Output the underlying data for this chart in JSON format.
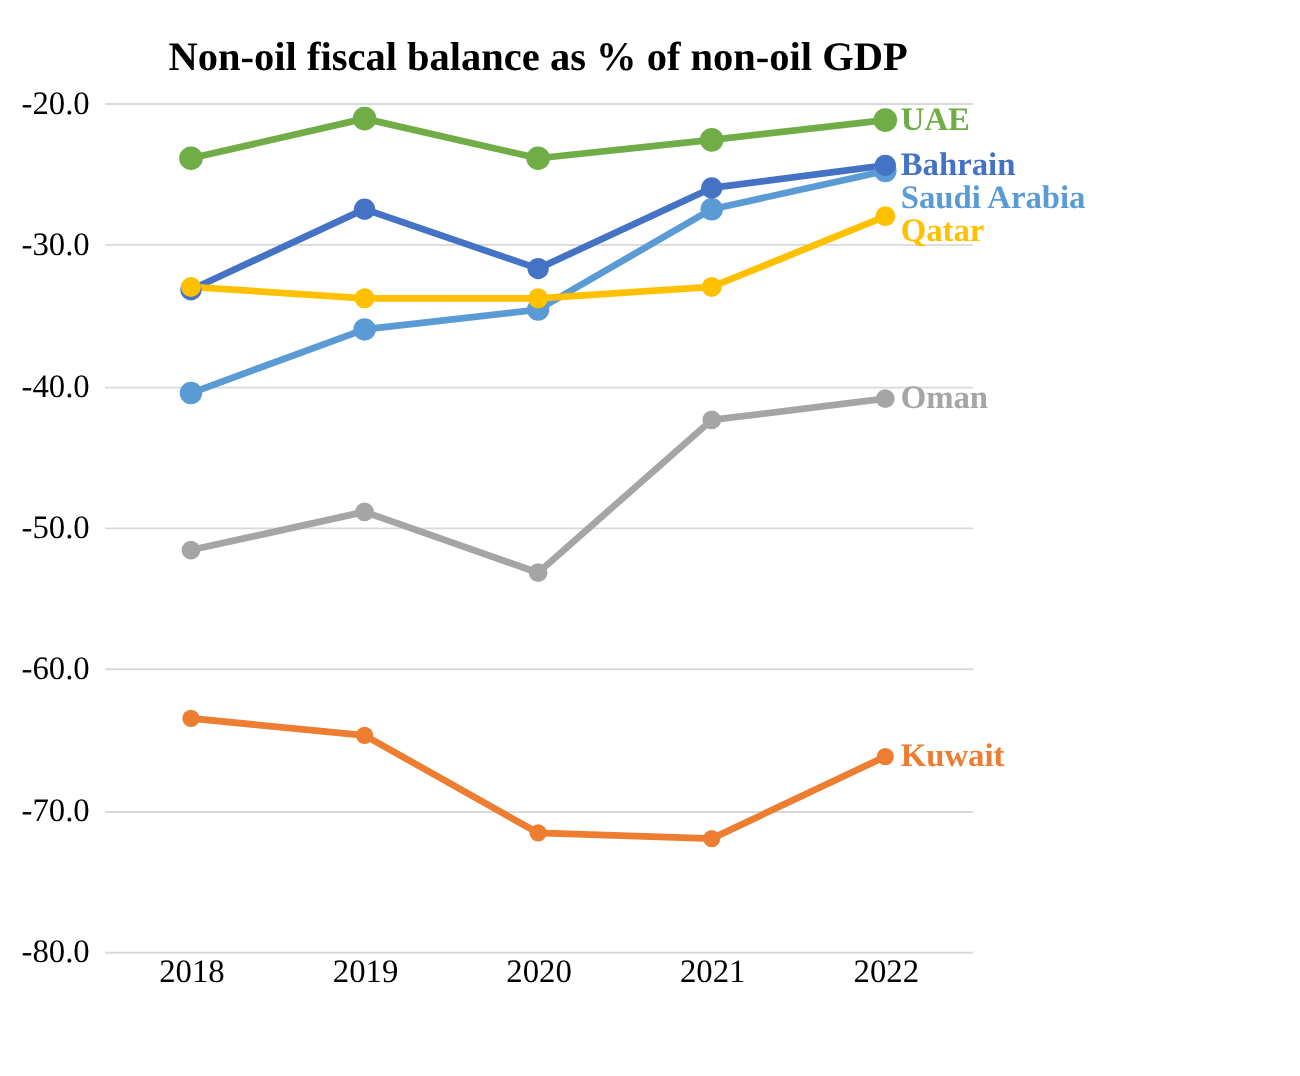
{
  "chart_data": {
    "type": "line",
    "title": "Non-oil fiscal balance as % of non-oil GDP",
    "categories": [
      "2018",
      "2019",
      "2020",
      "2021",
      "2022"
    ],
    "series": [
      {
        "name": "UAE",
        "color": "#70ad47",
        "values": [
          -23.9,
          -21.1,
          -23.9,
          -22.6,
          -21.2
        ]
      },
      {
        "name": "Saudi Arabia",
        "color": "#5b9bd5",
        "values": [
          -40.5,
          -36.0,
          -34.6,
          -27.5,
          -24.8
        ]
      },
      {
        "name": "Bahrain",
        "color": "#4472c4",
        "values": [
          -33.2,
          -27.5,
          -31.7,
          -26.0,
          -24.4
        ]
      },
      {
        "name": "Qatar",
        "color": "#ffc000",
        "values": [
          -33.0,
          -33.8,
          -33.8,
          -33.0,
          -28.0
        ]
      },
      {
        "name": "Oman",
        "color": "#a5a5a5",
        "values": [
          -51.6,
          -48.9,
          -53.2,
          -42.4,
          -40.9
        ]
      },
      {
        "name": "Kuwait",
        "color": "#ed7d31",
        "values": [
          -63.5,
          -64.7,
          -71.6,
          -72.0,
          -66.2
        ]
      }
    ],
    "ylim": [
      -80,
      -20
    ],
    "yticks": [
      {
        "value": -80,
        "label": "-80.0"
      },
      {
        "value": -70,
        "label": "-70.0"
      },
      {
        "value": -60,
        "label": "-60.0"
      },
      {
        "value": -50,
        "label": "-50.0"
      },
      {
        "value": -40,
        "label": "-40.0"
      },
      {
        "value": -30,
        "label": "-30.0"
      },
      {
        "value": -20,
        "label": "-20.0"
      }
    ],
    "grid": "y",
    "legend": false,
    "marker": "circle",
    "line_style": "solid"
  }
}
